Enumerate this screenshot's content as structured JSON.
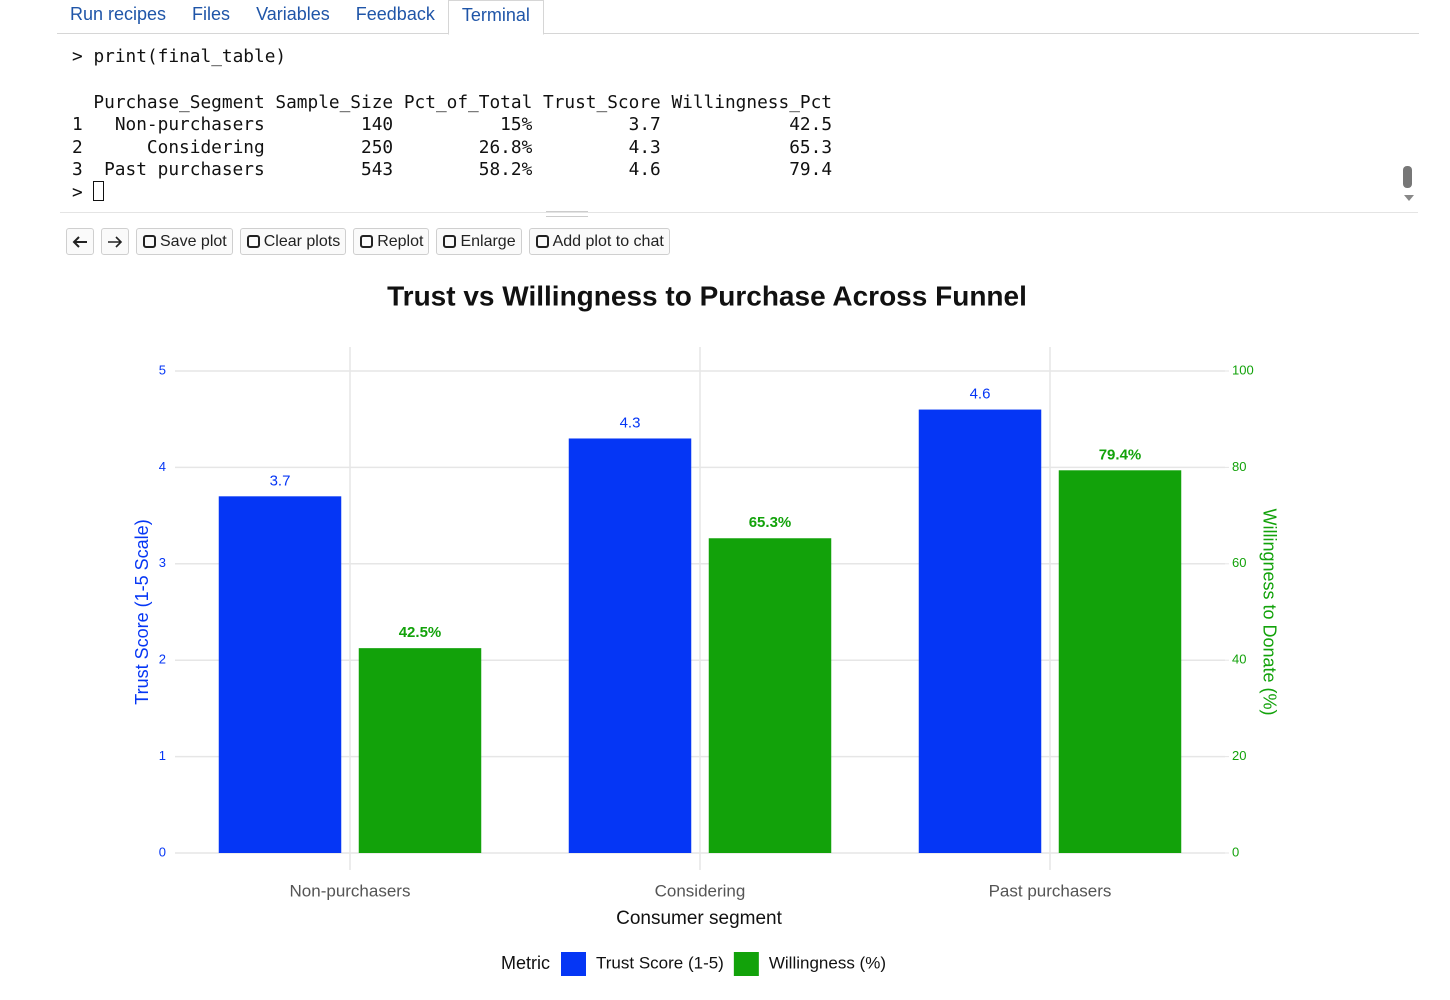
{
  "tabs": [
    "Run recipes",
    "Files",
    "Variables",
    "Feedback",
    "Terminal"
  ],
  "active_tab": 4,
  "terminal": {
    "prompt": ">",
    "command": "print(final_table)",
    "header": [
      "Purchase_Segment",
      "Sample_Size",
      "Pct_of_Total",
      "Trust_Score",
      "Willingness_Pct"
    ],
    "rows": [
      [
        "1",
        "Non-purchasers",
        "140",
        "15%",
        "3.7",
        "42.5"
      ],
      [
        "2",
        "Considering",
        "250",
        "26.8%",
        "4.3",
        "65.3"
      ],
      [
        "3",
        "Past purchasers",
        "543",
        "58.2%",
        "4.6",
        "79.4"
      ]
    ]
  },
  "toolbar": [
    "Save plot",
    "Clear plots",
    "Replot",
    "Enlarge",
    "Add plot to chat"
  ],
  "chart_data": {
    "type": "bar",
    "title": "Trust vs Willingness to Purchase Across Funnel",
    "categories": [
      "Non-purchasers",
      "Considering",
      "Past purchasers"
    ],
    "series": [
      {
        "name": "Trust Score (1-5)",
        "color": "#0536f5",
        "values": [
          3.7,
          4.3,
          4.6
        ]
      },
      {
        "name": "Willingness (%)",
        "color": "#12a20a",
        "axis": "y2",
        "values": [
          42.5,
          65.3,
          79.4
        ],
        "value_labels": [
          "42.5%",
          "65.3%",
          "79.4%"
        ]
      }
    ],
    "xlabel": "Consumer segment",
    "ylabel": "Trust Score (1-5 Scale)",
    "y2label": "Willingness to Donate (%)",
    "ylim": [
      0,
      5
    ],
    "yticks": [
      0,
      1,
      2,
      3,
      4,
      5
    ],
    "y2lim": [
      0,
      100
    ],
    "y2ticks": [
      0,
      20,
      40,
      60,
      80,
      100
    ],
    "grid": true,
    "legend_title": "Metric",
    "legend": "bottom"
  }
}
